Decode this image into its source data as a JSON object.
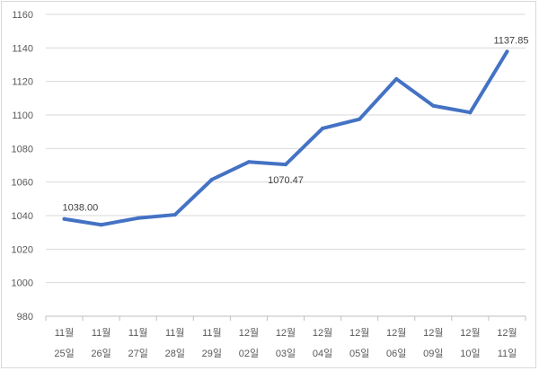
{
  "chart_data": {
    "type": "line",
    "title": "",
    "xlabel": "",
    "ylabel": "",
    "ylim": [
      980,
      1160
    ],
    "ytick_step": 20,
    "grid": "horizontal",
    "legend": "none",
    "line_color": "#4472c4",
    "categories": [
      [
        "11월",
        "25일"
      ],
      [
        "11월",
        "26일"
      ],
      [
        "11월",
        "27일"
      ],
      [
        "11월",
        "28일"
      ],
      [
        "11월",
        "29일"
      ],
      [
        "12월",
        "02일"
      ],
      [
        "12월",
        "03일"
      ],
      [
        "12월",
        "04일"
      ],
      [
        "12월",
        "05일"
      ],
      [
        "12월",
        "06일"
      ],
      [
        "12월",
        "09일"
      ],
      [
        "12월",
        "10일"
      ],
      [
        "12월",
        "11일"
      ]
    ],
    "values": [
      1038.0,
      1034.5,
      1038.5,
      1040.5,
      1061.5,
      1072.0,
      1070.47,
      1092.0,
      1097.5,
      1121.5,
      1105.5,
      1101.5,
      1137.85
    ],
    "data_labels": [
      {
        "index": 0,
        "text": "1038.00",
        "position": "above"
      },
      {
        "index": 6,
        "text": "1070.47",
        "position": "below"
      },
      {
        "index": 12,
        "text": "1137.85",
        "position": "above"
      }
    ]
  }
}
